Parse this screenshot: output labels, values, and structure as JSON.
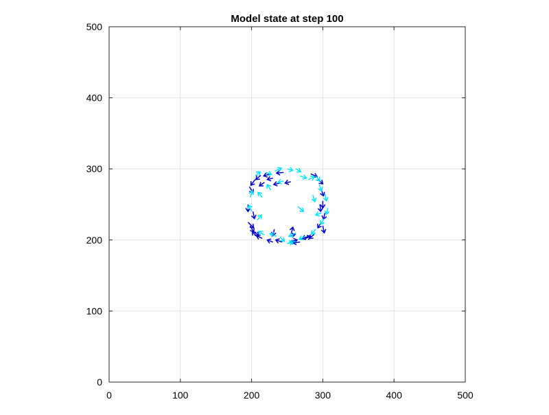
{
  "chart_data": {
    "type": "scatter",
    "title": "Model state at step 100",
    "xlabel": "",
    "ylabel": "",
    "xlim": [
      0,
      500
    ],
    "ylim": [
      0,
      500
    ],
    "xticks": [
      "0",
      "100",
      "200",
      "300",
      "400",
      "500"
    ],
    "yticks": [
      "0",
      "100",
      "200",
      "300",
      "400",
      "500"
    ],
    "grid": true,
    "legend": "none",
    "marker": "arrow",
    "colors": {
      "blue": "#0000cc",
      "cyan": "#00e5ff",
      "grid": "#e0e0e0",
      "axis": "#262626"
    },
    "series": [
      {
        "color": "blue",
        "points": [
          {
            "x": 195,
            "y": 225,
            "dx": 8,
            "dy": -8
          },
          {
            "x": 195,
            "y": 250,
            "dx": 0,
            "dy": -10
          },
          {
            "x": 197,
            "y": 275,
            "dx": 5,
            "dy": -9
          },
          {
            "x": 205,
            "y": 285,
            "dx": -6,
            "dy": -8
          },
          {
            "x": 213,
            "y": 291,
            "dx": -7,
            "dy": -6
          },
          {
            "x": 226,
            "y": 293,
            "dx": -9,
            "dy": -3
          },
          {
            "x": 245,
            "y": 295,
            "dx": -10,
            "dy": -1
          },
          {
            "x": 240,
            "y": 280,
            "dx": -9,
            "dy": -2
          },
          {
            "x": 255,
            "y": 282,
            "dx": -8,
            "dy": -2
          },
          {
            "x": 283,
            "y": 293,
            "dx": 9,
            "dy": -4
          },
          {
            "x": 293,
            "y": 285,
            "dx": 7,
            "dy": -6
          },
          {
            "x": 298,
            "y": 270,
            "dx": 3,
            "dy": -8
          },
          {
            "x": 300,
            "y": 255,
            "dx": 0,
            "dy": -10
          },
          {
            "x": 303,
            "y": 238,
            "dx": -2,
            "dy": -9
          },
          {
            "x": 298,
            "y": 225,
            "dx": -5,
            "dy": -8
          },
          {
            "x": 288,
            "y": 208,
            "dx": -7,
            "dy": -6
          },
          {
            "x": 280,
            "y": 205,
            "dx": -9,
            "dy": -3
          },
          {
            "x": 268,
            "y": 197,
            "dx": -10,
            "dy": -1
          },
          {
            "x": 255,
            "y": 198,
            "dx": 9,
            "dy": 2
          },
          {
            "x": 243,
            "y": 197,
            "dx": -9,
            "dy": 3
          },
          {
            "x": 230,
            "y": 197,
            "dx": -8,
            "dy": 3
          },
          {
            "x": 215,
            "y": 202,
            "dx": -8,
            "dy": 4
          },
          {
            "x": 203,
            "y": 212,
            "dx": 7,
            "dy": -6
          },
          {
            "x": 198,
            "y": 220,
            "dx": 5,
            "dy": -9
          },
          {
            "x": 202,
            "y": 240,
            "dx": 2,
            "dy": -10
          },
          {
            "x": 207,
            "y": 205,
            "dx": -6,
            "dy": 7
          },
          {
            "x": 256,
            "y": 210,
            "dx": 2,
            "dy": 8
          },
          {
            "x": 252,
            "y": 205,
            "dx": 9,
            "dy": 3
          },
          {
            "x": 296,
            "y": 250,
            "dx": 1,
            "dy": -10
          },
          {
            "x": 300,
            "y": 220,
            "dx": 2,
            "dy": -10
          },
          {
            "x": 275,
            "y": 202,
            "dx": 8,
            "dy": 3
          },
          {
            "x": 232,
            "y": 215,
            "dx": -2,
            "dy": -9
          },
          {
            "x": 230,
            "y": 287,
            "dx": -8,
            "dy": -2
          },
          {
            "x": 218,
            "y": 281,
            "dx": -7,
            "dy": -5
          }
        ]
      },
      {
        "color": "cyan",
        "points": [
          {
            "x": 205,
            "y": 290,
            "dx": 7,
            "dy": 6
          },
          {
            "x": 220,
            "y": 295,
            "dx": 8,
            "dy": -3
          },
          {
            "x": 233,
            "y": 297,
            "dx": 9,
            "dy": 4
          },
          {
            "x": 250,
            "y": 300,
            "dx": 8,
            "dy": -2
          },
          {
            "x": 262,
            "y": 300,
            "dx": 7,
            "dy": -4
          },
          {
            "x": 268,
            "y": 290,
            "dx": 9,
            "dy": -3
          },
          {
            "x": 280,
            "y": 285,
            "dx": 8,
            "dy": 4
          },
          {
            "x": 290,
            "y": 290,
            "dx": 6,
            "dy": -7
          },
          {
            "x": 295,
            "y": 278,
            "dx": 3,
            "dy": -9
          },
          {
            "x": 303,
            "y": 265,
            "dx": 2,
            "dy": -10
          },
          {
            "x": 307,
            "y": 245,
            "dx": -2,
            "dy": -9
          },
          {
            "x": 302,
            "y": 230,
            "dx": -5,
            "dy": -8
          },
          {
            "x": 290,
            "y": 215,
            "dx": -6,
            "dy": -7
          },
          {
            "x": 275,
            "y": 205,
            "dx": -8,
            "dy": -4
          },
          {
            "x": 262,
            "y": 198,
            "dx": -9,
            "dy": -2
          },
          {
            "x": 250,
            "y": 195,
            "dx": 8,
            "dy": 2
          },
          {
            "x": 235,
            "y": 205,
            "dx": -9,
            "dy": 4
          },
          {
            "x": 218,
            "y": 207,
            "dx": -8,
            "dy": 5
          },
          {
            "x": 208,
            "y": 228,
            "dx": 6,
            "dy": 7
          },
          {
            "x": 200,
            "y": 240,
            "dx": -4,
            "dy": 9
          },
          {
            "x": 198,
            "y": 260,
            "dx": 3,
            "dy": 9
          },
          {
            "x": 215,
            "y": 260,
            "dx": -6,
            "dy": 7
          },
          {
            "x": 227,
            "y": 270,
            "dx": -5,
            "dy": 8
          },
          {
            "x": 265,
            "y": 247,
            "dx": 8,
            "dy": -7
          },
          {
            "x": 298,
            "y": 238,
            "dx": -8,
            "dy": -3
          },
          {
            "x": 262,
            "y": 210,
            "dx": -9,
            "dy": -5
          },
          {
            "x": 245,
            "y": 283,
            "dx": -8,
            "dy": -2
          },
          {
            "x": 240,
            "y": 204,
            "dx": 6,
            "dy": -6
          },
          {
            "x": 286,
            "y": 263,
            "dx": 3,
            "dy": -9
          }
        ]
      }
    ]
  }
}
